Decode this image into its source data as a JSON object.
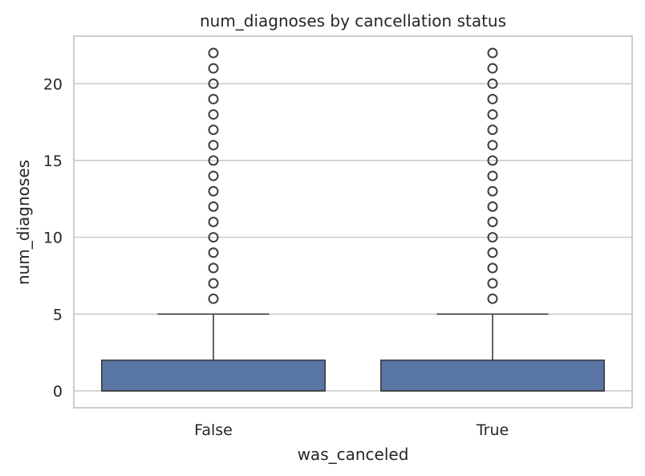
{
  "chart_data": {
    "type": "boxplot",
    "title": "num_diagnoses by cancellation status",
    "xlabel": "was_canceled",
    "ylabel": "num_diagnoses",
    "ylim": [
      -1.1,
      23.1
    ],
    "yticks": [
      0,
      5,
      10,
      15,
      20
    ],
    "grid": "horizontal",
    "colors": {
      "box_fill": "#5875a4",
      "line": "#3d3d3d",
      "grid": "#cccccc",
      "frame": "#cccccc"
    },
    "categories": [
      "False",
      "True"
    ],
    "boxes": [
      {
        "category": "False",
        "min": 0,
        "q1": 0,
        "median": 0,
        "q3": 2,
        "max": 5,
        "outliers": [
          6,
          7,
          8,
          9,
          10,
          11,
          12,
          13,
          14,
          15,
          16,
          17,
          18,
          19,
          20,
          21,
          22
        ]
      },
      {
        "category": "True",
        "min": 0,
        "q1": 0,
        "median": 0,
        "q3": 2,
        "max": 5,
        "outliers": [
          6,
          7,
          8,
          9,
          10,
          11,
          12,
          13,
          14,
          15,
          16,
          17,
          18,
          19,
          20,
          21,
          22
        ]
      }
    ]
  }
}
